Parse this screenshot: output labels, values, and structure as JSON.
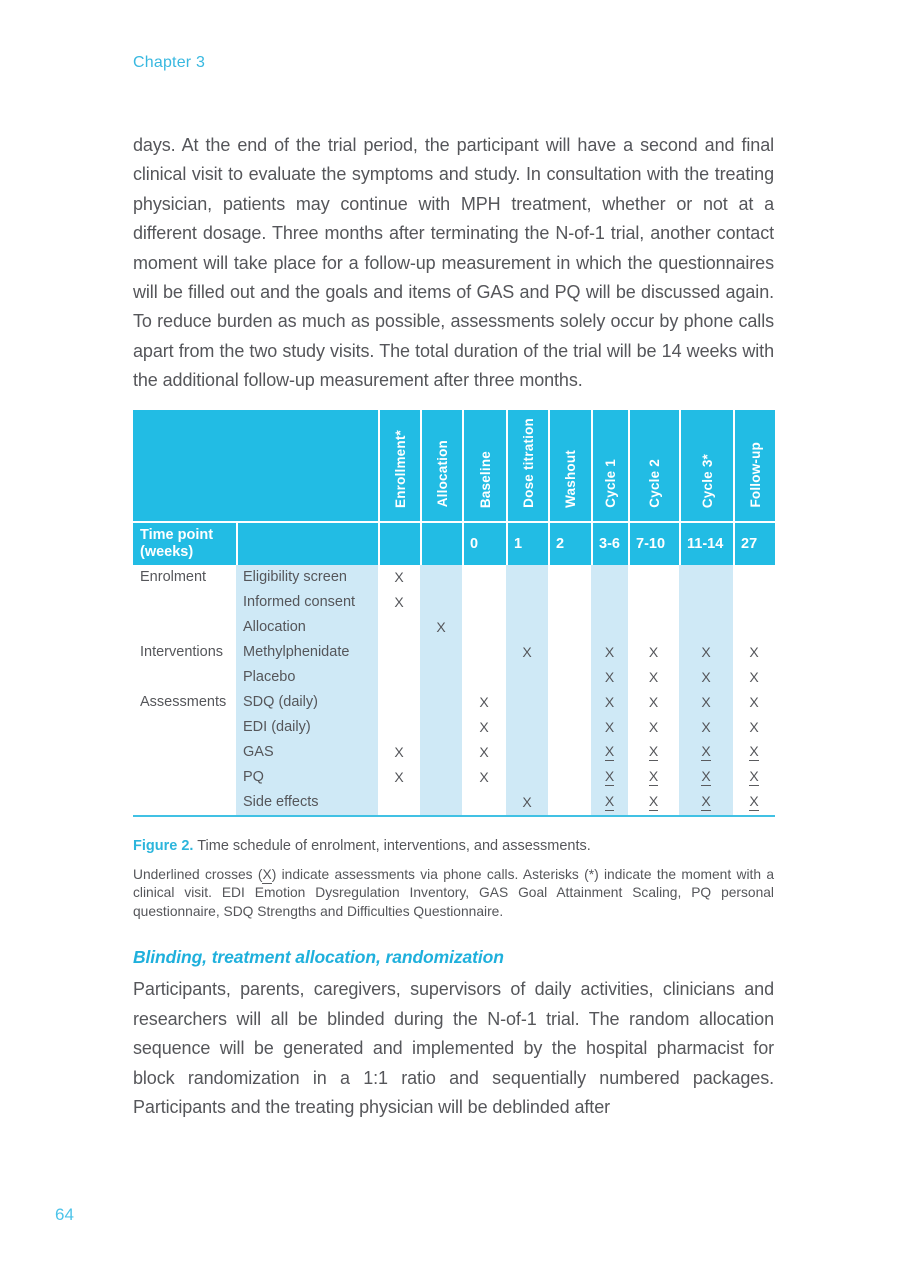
{
  "page": {
    "chapter": "Chapter 3",
    "page_number": "64"
  },
  "colors": {
    "accent_text": "#2cb5dc",
    "table_header_bg": "#22bce4",
    "table_stripe_bg": "#cfe9f6",
    "body_text": "#55565a"
  },
  "paragraph_1": "days. At the end of the trial period, the participant will have a second and final clinical visit to evaluate the symptoms and study. In consultation with the treating physician, patients may continue with MPH treatment, whether or not at a different dosage. Three months after terminating the N-of-1 trial, another contact moment will take place for a follow-up measurement in which the questionnaires will be filled out and the goals and items of GAS and PQ will be discussed again. To reduce burden as much as possible, assessments solely occur by phone calls apart from the two study visits. The total duration of the trial will be 14 weeks with the additional follow-up measurement after three months.",
  "figure": {
    "columns": [
      "Enrollment*",
      "Allocation",
      "Baseline",
      "Dose titration",
      "Washout",
      "Cycle 1",
      "Cycle 2",
      "Cycle 3*",
      "Follow-up"
    ],
    "timepoint_label": "Time point (weeks)",
    "timepoints": [
      "",
      "",
      "0",
      "1",
      "2",
      "3-6",
      "7-10",
      "11-14",
      "27"
    ],
    "striped_data_columns": [
      1,
      3,
      5,
      7
    ],
    "mark_legend": {
      "X": "assessment at visit",
      "U": "underlined X = assessment via phone call"
    },
    "rows": [
      {
        "group": "Enrolment",
        "item": "Eligibility screen",
        "marks": [
          "X",
          "",
          "",
          "",
          "",
          "",
          "",
          "",
          ""
        ]
      },
      {
        "group": "",
        "item": "Informed consent",
        "marks": [
          "X",
          "",
          "",
          "",
          "",
          "",
          "",
          "",
          ""
        ]
      },
      {
        "group": "",
        "item": "Allocation",
        "marks": [
          "",
          "X",
          "",
          "",
          "",
          "",
          "",
          "",
          ""
        ]
      },
      {
        "group": "Interventions",
        "item": "Methylphenidate",
        "marks": [
          "",
          "",
          "",
          "X",
          "",
          "X",
          "X",
          "X",
          "X"
        ]
      },
      {
        "group": "",
        "item": "Placebo",
        "marks": [
          "",
          "",
          "",
          "",
          "",
          "X",
          "X",
          "X",
          "X"
        ]
      },
      {
        "group": "Assessments",
        "item": "SDQ (daily)",
        "marks": [
          "",
          "",
          "X",
          "",
          "",
          "X",
          "X",
          "X",
          "X"
        ]
      },
      {
        "group": "",
        "item": "EDI (daily)",
        "marks": [
          "",
          "",
          "X",
          "",
          "",
          "X",
          "X",
          "X",
          "X"
        ]
      },
      {
        "group": "",
        "item": "GAS",
        "marks": [
          "X",
          "",
          "X",
          "",
          "",
          "U",
          "U",
          "U",
          "U"
        ]
      },
      {
        "group": "",
        "item": "PQ",
        "marks": [
          "X",
          "",
          "X",
          "",
          "",
          "U",
          "U",
          "U",
          "U"
        ]
      },
      {
        "group": "",
        "item": "Side effects",
        "marks": [
          "",
          "",
          "",
          "X",
          "",
          "U",
          "U",
          "U",
          "U"
        ]
      }
    ],
    "caption_label": "Figure 2.",
    "caption_text": " Time schedule of enrolment, interventions, and assessments.",
    "note": {
      "part1": "Underlined crosses (",
      "underlined_mark": "X",
      "part2": ") indicate assessments via phone calls. Asterisks (*) indicate the moment with a clinical visit. EDI Emotion Dysregulation Inventory, GAS Goal Attainment Scaling, PQ personal questionnaire, SDQ Strengths and Difficulties Questionnaire."
    }
  },
  "section": {
    "heading": "Blinding, treatment allocation, randomization",
    "paragraph": "Participants, parents, caregivers, supervisors of daily activities, clinicians and researchers will all be blinded during the N-of-1 trial. The random allocation sequence will be generated and implemented by the hospital pharmacist for block randomization in a 1:1 ratio and sequentially numbered packages. Participants and the treating physician will be deblinded after"
  }
}
